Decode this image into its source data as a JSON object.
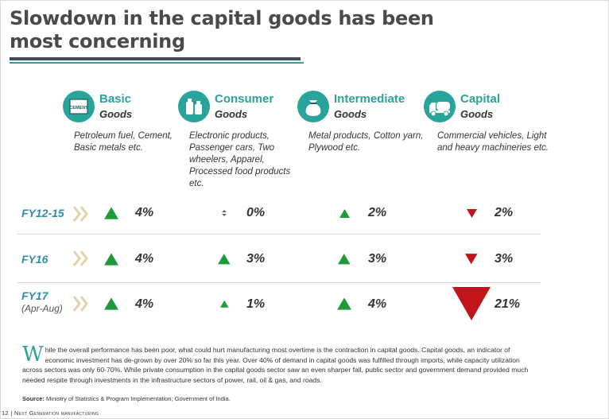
{
  "title": "Slowdown in the capital goods has been most concerning",
  "categories": [
    {
      "name": "Basic",
      "sub": "Goods",
      "icon": "cement-bag-icon",
      "desc": "Petroleum fuel, Cement, Basic metals etc."
    },
    {
      "name": "Consumer",
      "sub": "Goods",
      "icon": "bottles-icon",
      "desc": "Electronic products, Passenger cars, Two wheelers, Apparel, Processed food products etc."
    },
    {
      "name": "Intermediate",
      "sub": "Goods",
      "icon": "sack-icon",
      "desc": "Metal products, Cotton yarn, Plywood etc."
    },
    {
      "name": "Capital",
      "sub": "Goods",
      "icon": "truck-icon",
      "desc": "Commercial vehicles, Light and heavy machineries etc."
    }
  ],
  "icon_labels": {
    "cement": "CEMENT"
  },
  "rows": [
    {
      "label": "FY12-15",
      "sublabel": "",
      "cells": [
        {
          "value": "4%",
          "direction": "up",
          "magnitude": 4
        },
        {
          "value": "0%",
          "direction": "flat",
          "magnitude": 0
        },
        {
          "value": "2%",
          "direction": "up",
          "magnitude": 2
        },
        {
          "value": "2%",
          "direction": "down",
          "magnitude": 2
        }
      ]
    },
    {
      "label": "FY16",
      "sublabel": "",
      "cells": [
        {
          "value": "4%",
          "direction": "up",
          "magnitude": 4
        },
        {
          "value": "3%",
          "direction": "up",
          "magnitude": 3
        },
        {
          "value": "3%",
          "direction": "up",
          "magnitude": 3
        },
        {
          "value": "3%",
          "direction": "down",
          "magnitude": 3
        }
      ]
    },
    {
      "label": "FY17",
      "sublabel": "(Apr-Aug)",
      "cells": [
        {
          "value": "4%",
          "direction": "up",
          "magnitude": 4
        },
        {
          "value": "1%",
          "direction": "up",
          "magnitude": 1
        },
        {
          "value": "4%",
          "direction": "up",
          "magnitude": 4
        },
        {
          "value": "21%",
          "direction": "down",
          "magnitude": 21
        }
      ]
    }
  ],
  "paragraph": {
    "dropcap": "W",
    "text": "hile the overall performance has been poor, what could hurt manufacturing most overtime is the contraction in capital goods. Capital goods, an indicator of economic investment has de-grown by over 20% so far this year. Over 40% of demand in capital goods was fulfilled through imports, while capacity utilization across sectors was only 60-70%. While private consumption in the capital goods sector saw an even sharper fall, public sector and government demand provided much needed respite through investments in the infrastructure sectors of power, rail, oil & gas, and roads."
  },
  "source": {
    "label": "Source:",
    "text": "Ministry of Statistics & Program Implementation; Government of India."
  },
  "footer": {
    "page": "12",
    "divider": "|",
    "text": "Next Generation manufacturing"
  },
  "colors": {
    "teal": "#2aa39a",
    "up": "#1e9a3b",
    "down": "#c0161b",
    "flat": "#666666",
    "chevron": "#e8cfa6",
    "rowlabel": "#2f8fa8"
  }
}
